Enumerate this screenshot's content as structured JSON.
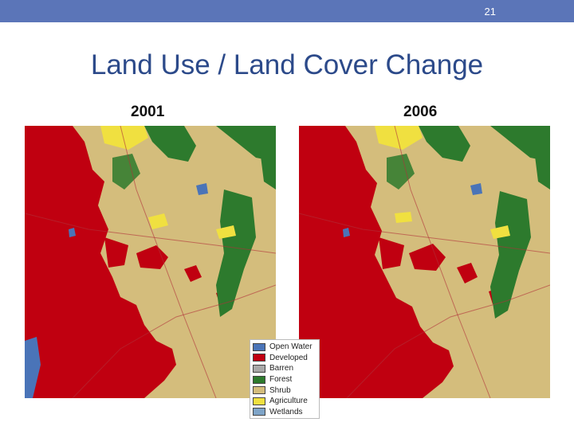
{
  "slide": {
    "page_number": "21",
    "title": "Land Use / Land Cover Change"
  },
  "maps": [
    {
      "year": "2001"
    },
    {
      "year": "2006"
    }
  ],
  "legend": {
    "items": [
      {
        "label": "Open Water",
        "color": "#4a74b8"
      },
      {
        "label": "Developed",
        "color": "#c00010"
      },
      {
        "label": "Barren",
        "color": "#a8a8a8"
      },
      {
        "label": "Forest",
        "color": "#2d7a2d"
      },
      {
        "label": "Shrub",
        "color": "#d4bd7c"
      },
      {
        "label": "Agriculture",
        "color": "#f0e040"
      },
      {
        "label": "Wetlands",
        "color": "#7ea4c8"
      }
    ]
  },
  "colors": {
    "header_bar": "#5b75b8",
    "title": "#2c4a8a"
  }
}
